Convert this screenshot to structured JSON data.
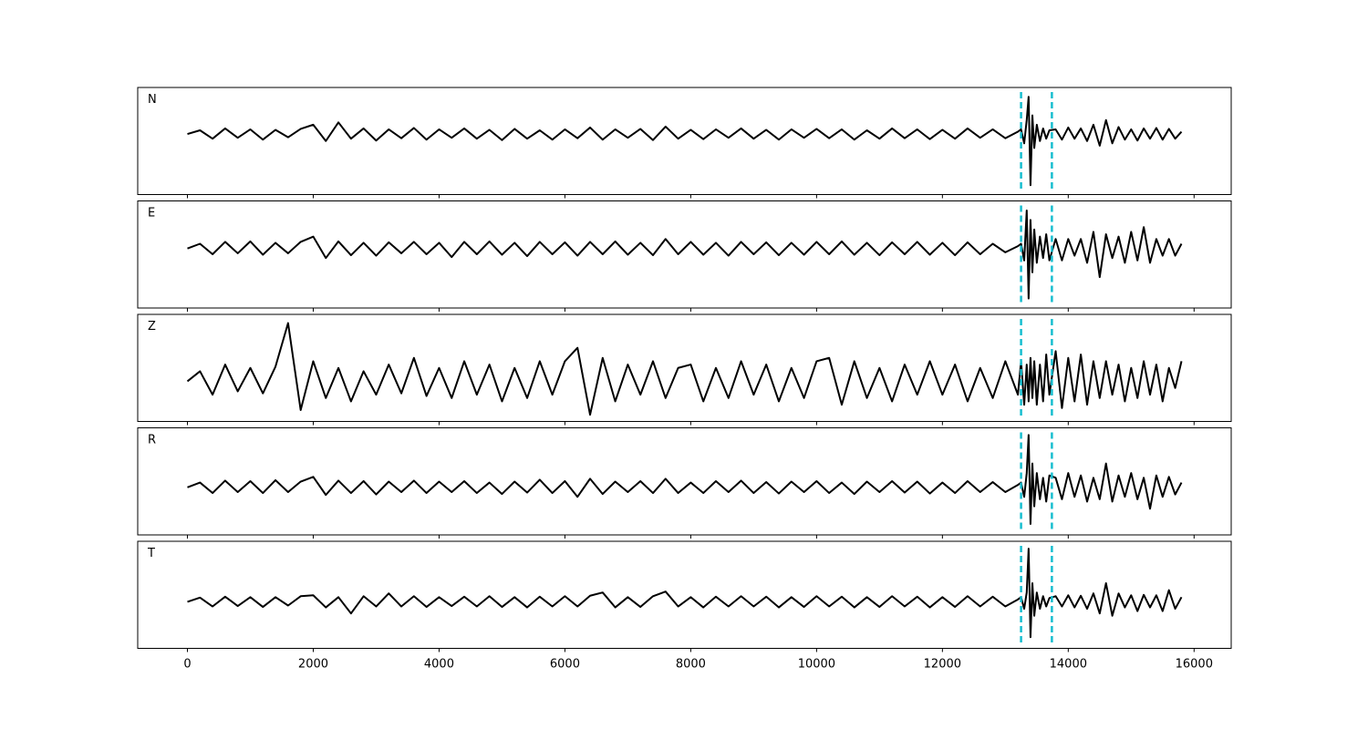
{
  "chart_data": {
    "type": "line",
    "x": [
      0,
      200,
      400,
      600,
      800,
      1000,
      1200,
      1400,
      1600,
      1800,
      2000,
      2200,
      2400,
      2600,
      2800,
      3000,
      3200,
      3400,
      3600,
      3800,
      4000,
      4200,
      4400,
      4600,
      4800,
      5000,
      5200,
      5400,
      5600,
      5800,
      6000,
      6200,
      6400,
      6600,
      6800,
      7000,
      7200,
      7400,
      7600,
      7800,
      8000,
      8200,
      8400,
      8600,
      8800,
      9000,
      9200,
      9400,
      9600,
      9800,
      10000,
      10200,
      10400,
      10600,
      10800,
      11000,
      11200,
      11400,
      11600,
      11800,
      12000,
      12200,
      12400,
      12600,
      12800,
      13000,
      13200,
      13250,
      13300,
      13340,
      13370,
      13400,
      13430,
      13460,
      13500,
      13550,
      13600,
      13650,
      13700,
      13800,
      13900,
      14000,
      14100,
      14200,
      14300,
      14400,
      14500,
      14600,
      14700,
      14800,
      14900,
      15000,
      15100,
      15200,
      15300,
      15400,
      15500,
      15600,
      15700,
      15800
    ],
    "xlim": [
      -790,
      16590
    ],
    "xticks": [
      0,
      2000,
      4000,
      6000,
      8000,
      10000,
      12000,
      14000,
      16000
    ],
    "vlines": [
      13250,
      13740
    ],
    "vline_color": "#17becf",
    "series": [
      {
        "name": "N",
        "color": "#000000",
        "ylim": [
          -1.3,
          1.0
        ],
        "values": [
          0,
          0.08,
          -0.1,
          0.12,
          -0.08,
          0.1,
          -0.12,
          0.09,
          -0.07,
          0.11,
          0.2,
          -0.15,
          0.25,
          -0.1,
          0.12,
          -0.14,
          0.1,
          -0.09,
          0.13,
          -0.12,
          0.1,
          -0.08,
          0.12,
          -0.1,
          0.09,
          -0.13,
          0.11,
          -0.1,
          0.08,
          -0.12,
          0.1,
          -0.09,
          0.14,
          -0.12,
          0.1,
          -0.08,
          0.11,
          -0.13,
          0.16,
          -0.1,
          0.09,
          -0.11,
          0.1,
          -0.08,
          0.12,
          -0.1,
          0.09,
          -0.12,
          0.1,
          -0.08,
          0.11,
          -0.09,
          0.1,
          -0.12,
          0.08,
          -0.1,
          0.12,
          -0.09,
          0.1,
          -0.11,
          0.09,
          -0.1,
          0.12,
          -0.08,
          0.1,
          -0.09,
          0.05,
          0.1,
          -0.2,
          0.3,
          0.8,
          -1.1,
          0.4,
          -0.3,
          0.2,
          -0.15,
          0.12,
          -0.1,
          0.08,
          0.1,
          -0.12,
          0.14,
          -0.1,
          0.12,
          -0.15,
          0.2,
          -0.25,
          0.3,
          -0.2,
          0.15,
          -0.12,
          0.1,
          -0.14,
          0.12,
          -0.1,
          0.13,
          -0.12,
          0.11,
          -0.1,
          0.05
        ]
      },
      {
        "name": "E",
        "color": "#000000",
        "ylim": [
          -1.25,
          1.0
        ],
        "values": [
          0,
          0.1,
          -0.12,
          0.14,
          -0.1,
          0.15,
          -0.13,
          0.12,
          -0.1,
          0.14,
          0.25,
          -0.2,
          0.15,
          -0.14,
          0.12,
          -0.15,
          0.13,
          -0.1,
          0.14,
          -0.12,
          0.12,
          -0.18,
          0.14,
          -0.12,
          0.15,
          -0.13,
          0.12,
          -0.16,
          0.14,
          -0.12,
          0.13,
          -0.15,
          0.14,
          -0.12,
          0.15,
          -0.13,
          0.12,
          -0.14,
          0.2,
          -0.12,
          0.14,
          -0.13,
          0.12,
          -0.15,
          0.14,
          -0.12,
          0.13,
          -0.14,
          0.12,
          -0.13,
          0.14,
          -0.12,
          0.15,
          -0.13,
          0.12,
          -0.14,
          0.13,
          -0.12,
          0.14,
          -0.13,
          0.12,
          -0.14,
          0.13,
          -0.12,
          0.1,
          -0.08,
          0.05,
          0.1,
          -0.25,
          0.8,
          -1.05,
          0.6,
          -0.5,
          0.4,
          -0.3,
          0.25,
          -0.2,
          0.3,
          -0.25,
          0.2,
          -0.25,
          0.2,
          -0.15,
          0.2,
          -0.3,
          0.35,
          -0.6,
          0.3,
          -0.2,
          0.25,
          -0.3,
          0.35,
          -0.25,
          0.45,
          -0.3,
          0.2,
          -0.15,
          0.2,
          -0.15,
          0.1
        ]
      },
      {
        "name": "Z",
        "color": "#000000",
        "ylim": [
          -0.6,
          1.0
        ],
        "values": [
          0,
          0.15,
          -0.2,
          0.25,
          -0.15,
          0.2,
          -0.18,
          0.22,
          0.87,
          -0.43,
          0.3,
          -0.25,
          0.2,
          -0.3,
          0.15,
          -0.2,
          0.25,
          -0.18,
          0.35,
          -0.22,
          0.2,
          -0.25,
          0.3,
          -0.2,
          0.25,
          -0.3,
          0.2,
          -0.25,
          0.3,
          -0.2,
          0.3,
          0.5,
          -0.5,
          0.35,
          -0.3,
          0.25,
          -0.2,
          0.3,
          -0.25,
          0.2,
          0.25,
          -0.3,
          0.2,
          -0.25,
          0.3,
          -0.2,
          0.25,
          -0.3,
          0.2,
          -0.25,
          0.3,
          0.35,
          -0.35,
          0.3,
          -0.25,
          0.2,
          -0.3,
          0.25,
          -0.2,
          0.3,
          -0.2,
          0.25,
          -0.3,
          0.2,
          -0.25,
          0.3,
          -0.2,
          0.3,
          -0.35,
          0.25,
          -0.3,
          0.35,
          -0.25,
          0.3,
          -0.35,
          0.25,
          -0.3,
          0.4,
          -0.2,
          0.45,
          -0.4,
          0.35,
          -0.3,
          0.4,
          -0.35,
          0.3,
          -0.25,
          0.3,
          -0.2,
          0.25,
          -0.3,
          0.2,
          -0.25,
          0.3,
          -0.2,
          0.25,
          -0.3,
          0.2,
          -0.1,
          0.3
        ]
      },
      {
        "name": "R",
        "color": "#000000",
        "ylim": [
          -1.0,
          1.25
        ],
        "values": [
          0,
          0.1,
          -0.12,
          0.14,
          -0.1,
          0.13,
          -0.12,
          0.15,
          -0.1,
          0.12,
          0.22,
          -0.16,
          0.14,
          -0.12,
          0.13,
          -0.15,
          0.12,
          -0.1,
          0.14,
          -0.12,
          0.12,
          -0.1,
          0.13,
          -0.12,
          0.1,
          -0.14,
          0.12,
          -0.11,
          0.16,
          -0.12,
          0.13,
          -0.2,
          0.18,
          -0.14,
          0.12,
          -0.1,
          0.13,
          -0.12,
          0.18,
          -0.12,
          0.1,
          -0.12,
          0.13,
          -0.1,
          0.14,
          -0.12,
          0.11,
          -0.13,
          0.12,
          -0.1,
          0.13,
          -0.12,
          0.1,
          -0.14,
          0.12,
          -0.1,
          0.13,
          -0.11,
          0.12,
          -0.13,
          0.1,
          -0.12,
          0.13,
          -0.1,
          0.11,
          -0.1,
          0.05,
          0.1,
          -0.2,
          0.3,
          1.1,
          -0.77,
          0.5,
          -0.4,
          0.3,
          -0.25,
          0.2,
          -0.3,
          0.25,
          0.2,
          -0.25,
          0.3,
          -0.2,
          0.25,
          -0.3,
          0.2,
          -0.25,
          0.5,
          -0.3,
          0.25,
          -0.2,
          0.3,
          -0.25,
          0.2,
          -0.45,
          0.25,
          -0.2,
          0.22,
          -0.15,
          0.1
        ]
      },
      {
        "name": "T",
        "color": "#000000",
        "ylim": [
          -1.0,
          1.3
        ],
        "values": [
          0,
          0.09,
          -0.1,
          0.11,
          -0.09,
          0.1,
          -0.11,
          0.1,
          -0.08,
          0.12,
          0.14,
          -0.12,
          0.1,
          -0.25,
          0.12,
          -0.1,
          0.18,
          -0.1,
          0.12,
          -0.11,
          0.1,
          -0.09,
          0.11,
          -0.1,
          0.12,
          -0.11,
          0.1,
          -0.12,
          0.11,
          -0.1,
          0.12,
          -0.1,
          0.13,
          0.2,
          -0.12,
          0.1,
          -0.11,
          0.12,
          0.22,
          -0.1,
          0.1,
          -0.12,
          0.11,
          -0.1,
          0.12,
          -0.1,
          0.11,
          -0.12,
          0.1,
          -0.11,
          0.12,
          -0.1,
          0.11,
          -0.12,
          0.1,
          -0.11,
          0.12,
          -0.1,
          0.11,
          -0.12,
          0.1,
          -0.11,
          0.12,
          -0.1,
          0.11,
          -0.1,
          0.05,
          0.1,
          -0.15,
          0.2,
          1.14,
          -0.76,
          0.4,
          -0.3,
          0.2,
          -0.15,
          0.12,
          -0.1,
          0.08,
          0.12,
          -0.1,
          0.14,
          -0.12,
          0.13,
          -0.15,
          0.18,
          -0.25,
          0.4,
          -0.3,
          0.18,
          -0.12,
          0.14,
          -0.2,
          0.15,
          -0.12,
          0.14,
          -0.2,
          0.25,
          -0.15,
          0.1
        ]
      }
    ]
  }
}
